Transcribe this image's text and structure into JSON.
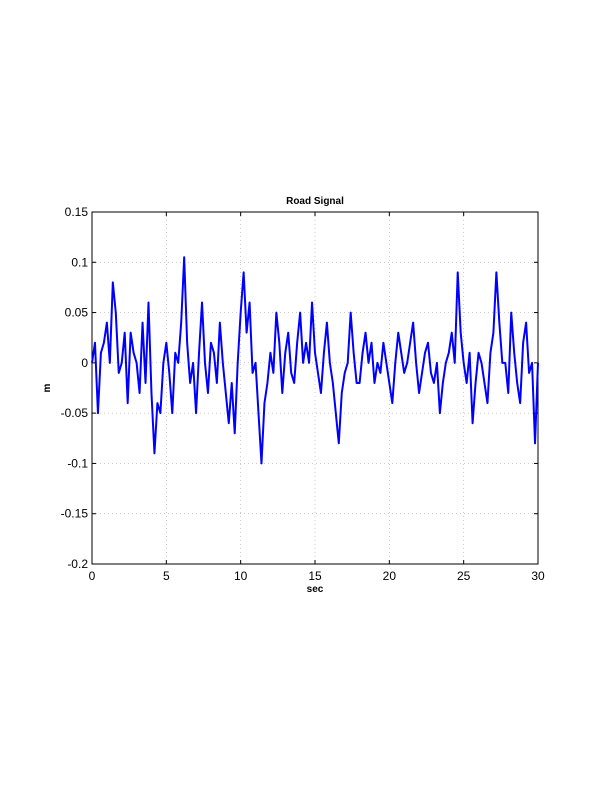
{
  "chart_data": {
    "type": "line",
    "title": "Road Signal",
    "x_label": "sec",
    "y_label": "m",
    "x": [
      0,
      0.2,
      0.4,
      0.6,
      0.8,
      1.0,
      1.2,
      1.4,
      1.6,
      1.8,
      2.0,
      2.2,
      2.4,
      2.6,
      2.8,
      3.0,
      3.2,
      3.4,
      3.6,
      3.8,
      4.0,
      4.2,
      4.4,
      4.6,
      4.8,
      5.0,
      5.2,
      5.4,
      5.6,
      5.8,
      6.0,
      6.2,
      6.4,
      6.6,
      6.8,
      7.0,
      7.2,
      7.4,
      7.6,
      7.8,
      8.0,
      8.2,
      8.4,
      8.6,
      8.8,
      9.0,
      9.2,
      9.4,
      9.6,
      9.8,
      10.0,
      10.2,
      10.4,
      10.6,
      10.8,
      11.0,
      11.2,
      11.4,
      11.6,
      11.8,
      12.0,
      12.2,
      12.4,
      12.6,
      12.8,
      13.0,
      13.2,
      13.4,
      13.6,
      13.8,
      14.0,
      14.2,
      14.4,
      14.6,
      14.8,
      15.0,
      15.2,
      15.4,
      15.6,
      15.8,
      16.0,
      16.2,
      16.4,
      16.6,
      16.8,
      17.0,
      17.2,
      17.4,
      17.6,
      17.8,
      18.0,
      18.2,
      18.4,
      18.6,
      18.8,
      19.0,
      19.2,
      19.4,
      19.6,
      19.8,
      20.0,
      20.2,
      20.4,
      20.6,
      20.8,
      21.0,
      21.2,
      21.4,
      21.6,
      21.8,
      22.0,
      22.2,
      22.4,
      22.6,
      22.8,
      23.0,
      23.2,
      23.4,
      23.6,
      23.8,
      24.0,
      24.2,
      24.4,
      24.6,
      24.8,
      25.0,
      25.2,
      25.4,
      25.6,
      25.8,
      26.0,
      26.2,
      26.4,
      26.6,
      26.8,
      27.0,
      27.2,
      27.4,
      27.6,
      27.8,
      28.0,
      28.2,
      28.4,
      28.6,
      28.8,
      29.0,
      29.2,
      29.4,
      29.6,
      29.8,
      30.0
    ],
    "series": [
      {
        "color": "#0000ff",
        "values": [
          0,
          0.02,
          -0.05,
          0.01,
          0.02,
          0.04,
          0.0,
          0.08,
          0.05,
          -0.01,
          0.0,
          0.03,
          -0.04,
          0.03,
          0.01,
          0.0,
          -0.03,
          0.04,
          -0.02,
          0.06,
          -0.03,
          -0.09,
          -0.04,
          -0.05,
          0.0,
          0.02,
          -0.01,
          -0.05,
          0.01,
          0.0,
          0.04,
          0.105,
          0.02,
          -0.02,
          0.0,
          -0.05,
          0.01,
          0.06,
          0.0,
          -0.03,
          0.02,
          0.01,
          -0.02,
          0.04,
          0.0,
          -0.03,
          -0.06,
          -0.02,
          -0.07,
          0.0,
          0.05,
          0.09,
          0.03,
          0.06,
          -0.01,
          0.0,
          -0.05,
          -0.1,
          -0.04,
          -0.02,
          0.01,
          -0.01,
          0.05,
          0.02,
          -0.03,
          0.01,
          0.03,
          -0.01,
          -0.02,
          0.02,
          0.05,
          0.0,
          0.02,
          0.0,
          0.06,
          0.01,
          -0.01,
          -0.03,
          0.01,
          0.04,
          0.0,
          -0.02,
          -0.05,
          -0.08,
          -0.03,
          -0.01,
          0.0,
          0.05,
          0.01,
          -0.02,
          -0.02,
          0.01,
          0.03,
          0.0,
          0.02,
          -0.02,
          0.0,
          -0.01,
          0.02,
          0.0,
          -0.02,
          -0.04,
          0.0,
          0.03,
          0.01,
          -0.01,
          0.0,
          0.02,
          0.04,
          0.0,
          -0.03,
          -0.01,
          0.01,
          0.02,
          -0.01,
          -0.02,
          0.0,
          -0.05,
          -0.02,
          0.0,
          0.01,
          0.03,
          0.0,
          0.09,
          0.03,
          0.0,
          -0.02,
          0.01,
          -0.06,
          -0.02,
          0.01,
          0.0,
          -0.02,
          -0.04,
          0.01,
          0.03,
          0.09,
          0.04,
          0.0,
          0.0,
          -0.03,
          0.05,
          0.01,
          -0.02,
          -0.04,
          0.02,
          0.04,
          -0.01,
          0.0,
          -0.08,
          0.0
        ]
      }
    ],
    "xlim": [
      0,
      30
    ],
    "xticks": [
      0,
      5,
      10,
      15,
      20,
      25,
      30
    ],
    "ylim": [
      -0.2,
      0.15
    ],
    "yticks": [
      -0.2,
      -0.15,
      -0.1,
      -0.05,
      0,
      0.05,
      0.1,
      0.15
    ],
    "grid": true
  }
}
